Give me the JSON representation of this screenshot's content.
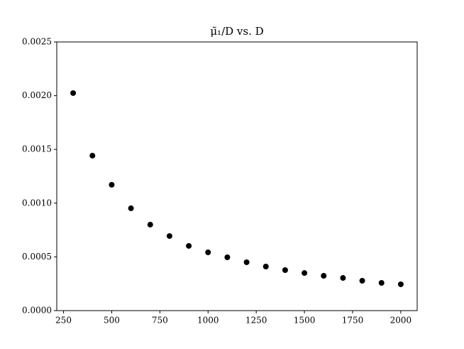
{
  "chart_data": {
    "type": "scatter",
    "title": "μ̃₁/D vs. D",
    "color": "#000000",
    "x": [
      300,
      400,
      500,
      600,
      700,
      800,
      900,
      1000,
      1100,
      1200,
      1300,
      1400,
      1500,
      1600,
      1700,
      1800,
      1900,
      2000
    ],
    "values": [
      0.002024,
      0.001442,
      0.001171,
      0.000952,
      0.0008,
      0.000694,
      0.000602,
      0.000542,
      0.000496,
      0.00045,
      0.00041,
      0.000377,
      0.00035,
      0.000324,
      0.000304,
      0.000278,
      0.000258,
      0.000245
    ],
    "xlim": [
      215,
      2085
    ],
    "xticks": [
      250,
      500,
      750,
      1000,
      1250,
      1500,
      1750,
      2000
    ],
    "ylim": [
      0,
      0.0025
    ],
    "yticks": [
      {
        "value": 0,
        "label": "0.0000"
      },
      {
        "value": 0.0005,
        "label": "0.0005"
      },
      {
        "value": 0.001,
        "label": "0.0010"
      },
      {
        "value": 0.0015,
        "label": "0.0015"
      },
      {
        "value": 0.002,
        "label": "0.0020"
      },
      {
        "value": 0.0025,
        "label": "0.0025"
      }
    ]
  }
}
